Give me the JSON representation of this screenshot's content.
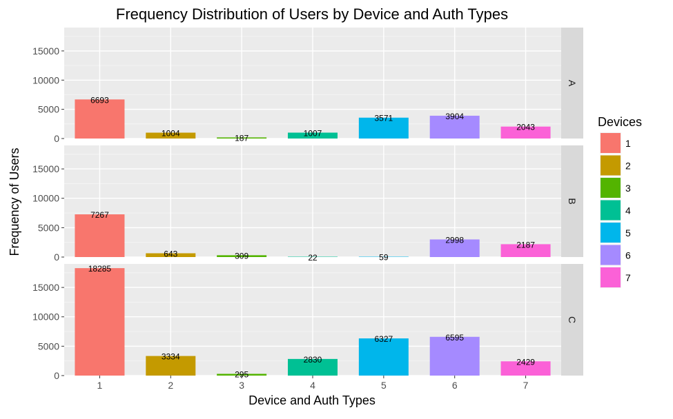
{
  "chart_data": {
    "type": "bar",
    "title": "Frequency Distribution of Users by Device and Auth Types",
    "xlabel": "Device and Auth Types",
    "ylabel": "Frequency of Users",
    "categories": [
      "1",
      "2",
      "3",
      "4",
      "5",
      "6",
      "7"
    ],
    "ylim": [
      0,
      19000
    ],
    "yticks": [
      0,
      5000,
      10000,
      15000
    ],
    "legend": {
      "title": "Devices",
      "position": "right",
      "entries": [
        "1",
        "2",
        "3",
        "4",
        "5",
        "6",
        "7"
      ]
    },
    "colors": [
      "#F8766D",
      "#C49A00",
      "#53B400",
      "#00C094",
      "#00B6EB",
      "#A58AFF",
      "#FB61D7"
    ],
    "facets": [
      {
        "label": "A",
        "values": [
          6693,
          1004,
          187,
          1007,
          3571,
          3904,
          2043
        ]
      },
      {
        "label": "B",
        "values": [
          7267,
          643,
          309,
          22,
          59,
          2998,
          2187
        ]
      },
      {
        "label": "C",
        "values": [
          18285,
          3334,
          295,
          2830,
          6327,
          6595,
          2429
        ]
      }
    ]
  }
}
